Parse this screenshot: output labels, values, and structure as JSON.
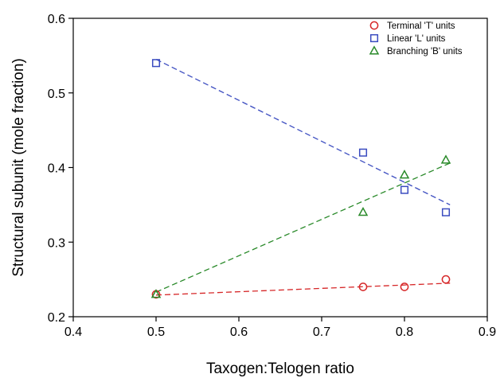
{
  "chart_data": {
    "type": "scatter",
    "xlabel": "Taxogen:Telogen ratio",
    "ylabel": "Structural subunit (mole fraction)",
    "xlim": [
      0.4,
      0.9
    ],
    "ylim": [
      0.2,
      0.6
    ],
    "xticks": [
      "0.4",
      "0.5",
      "0.6",
      "0.7",
      "0.8",
      "0.9"
    ],
    "yticks": [
      "0.2",
      "0.3",
      "0.4",
      "0.5",
      "0.6"
    ],
    "grid": false,
    "legend_position": "top-right",
    "series": [
      {
        "name": "Terminal 'T' units",
        "marker": "circle",
        "color": "#d62728",
        "x": [
          0.5,
          0.75,
          0.8,
          0.85
        ],
        "y": [
          0.23,
          0.24,
          0.24,
          0.25
        ],
        "fit": {
          "x": [
            0.5,
            0.855
          ],
          "y": [
            0.229,
            0.245
          ]
        }
      },
      {
        "name": "Linear 'L' units",
        "marker": "square",
        "color": "#3b4cc0",
        "x": [
          0.5,
          0.75,
          0.8,
          0.85
        ],
        "y": [
          0.54,
          0.42,
          0.37,
          0.34
        ],
        "fit": {
          "x": [
            0.5,
            0.855
          ],
          "y": [
            0.545,
            0.35
          ]
        }
      },
      {
        "name": "Branching 'B' units",
        "marker": "triangle",
        "color": "#2a8a2a",
        "x": [
          0.5,
          0.75,
          0.8,
          0.85
        ],
        "y": [
          0.23,
          0.34,
          0.39,
          0.41
        ],
        "fit": {
          "x": [
            0.5,
            0.855
          ],
          "y": [
            0.233,
            0.406
          ]
        }
      }
    ]
  }
}
